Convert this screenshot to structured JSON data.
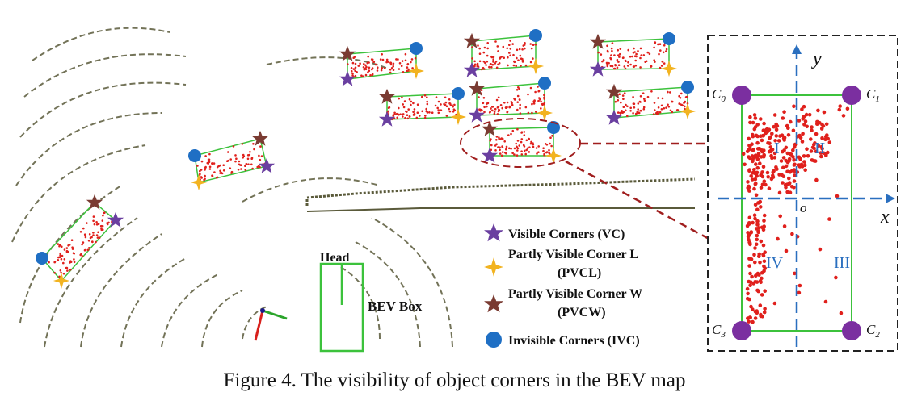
{
  "legend": {
    "vc": "Visible Corners (VC)",
    "pvcl_1": "Partly Visible Corner L",
    "pvcl_2": "(PVCL)",
    "pvcw_1": "Partly Visible Corner W",
    "pvcw_2": "(PVCW)",
    "ivc": "Invisible Corners (IVC)"
  },
  "colors": {
    "vc": "#6a3fa0",
    "pvcl": "#f2b320",
    "pvcw": "#7a3b32",
    "ivc": "#1f6fc4",
    "points": "#e0201c",
    "box": "#3cc23c",
    "scan": "#5a5a3a",
    "axis": "#2a6fbf",
    "corner_dot": "#7b2fa0"
  },
  "bev_box": {
    "head_label": "Head",
    "box_label": "BEV Box"
  },
  "inset": {
    "x_label": "x",
    "y_label": "y",
    "origin_label": "o",
    "c0": "C",
    "c0_sub": "0",
    "c1": "C",
    "c1_sub": "1",
    "c2": "C",
    "c2_sub": "2",
    "c3": "C",
    "c3_sub": "3",
    "q1": "I",
    "q2": "II",
    "q3": "III",
    "q4": "IV"
  },
  "caption": "Figure 4. The visibility of object corners in the BEV map"
}
